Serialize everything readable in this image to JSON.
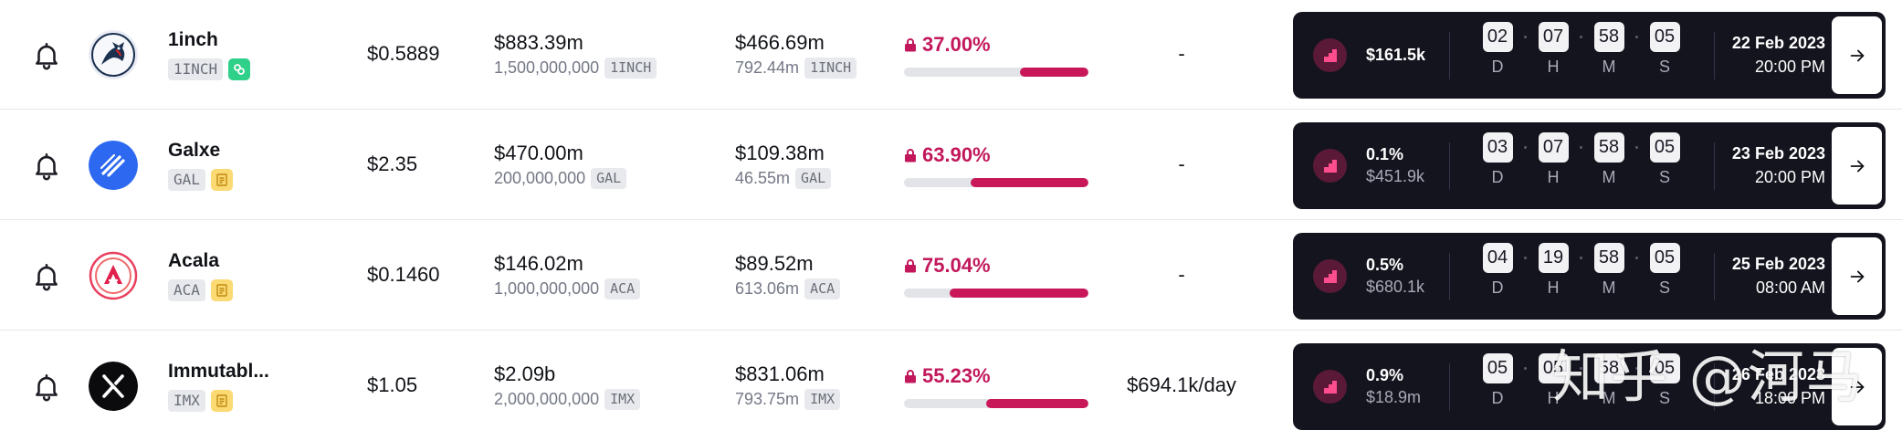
{
  "rows": [
    {
      "name": "1inch",
      "symbol": "1INCH",
      "badge_icon": "link-icon",
      "price": "$0.5889",
      "market_cap": "$883.39m",
      "total_supply": "1,500,000,000",
      "circulating": "$466.69m",
      "circulating_amount": "792.44m",
      "unlocked_pct": "37.00%",
      "unlocked_value": 37.0,
      "daily": "-",
      "next_pct": "",
      "next_value": "$161.5k",
      "countdown": {
        "d": "02",
        "h": "07",
        "m": "58",
        "s": "05"
      },
      "date": "22 Feb 2023",
      "time": "20:00 PM"
    },
    {
      "name": "Galxe",
      "symbol": "GAL",
      "badge_icon": "document-icon",
      "price": "$2.35",
      "market_cap": "$470.00m",
      "total_supply": "200,000,000",
      "circulating": "$109.38m",
      "circulating_amount": "46.55m",
      "unlocked_pct": "63.90%",
      "unlocked_value": 63.9,
      "daily": "-",
      "next_pct": "0.1%",
      "next_value": "$451.9k",
      "countdown": {
        "d": "03",
        "h": "07",
        "m": "58",
        "s": "05"
      },
      "date": "23 Feb 2023",
      "time": "20:00 PM"
    },
    {
      "name": "Acala",
      "symbol": "ACA",
      "badge_icon": "document-icon",
      "price": "$0.1460",
      "market_cap": "$146.02m",
      "total_supply": "1,000,000,000",
      "circulating": "$89.52m",
      "circulating_amount": "613.06m",
      "unlocked_pct": "75.04%",
      "unlocked_value": 75.04,
      "daily": "-",
      "next_pct": "0.5%",
      "next_value": "$680.1k",
      "countdown": {
        "d": "04",
        "h": "19",
        "m": "58",
        "s": "05"
      },
      "date": "25 Feb 2023",
      "time": "08:00 AM"
    },
    {
      "name": "Immutabl...",
      "symbol": "IMX",
      "badge_icon": "document-icon",
      "price": "$1.05",
      "market_cap": "$2.09b",
      "total_supply": "2,000,000,000",
      "circulating": "$831.06m",
      "circulating_amount": "793.75m",
      "unlocked_pct": "55.23%",
      "unlocked_value": 55.23,
      "daily": "$694.1k/day",
      "next_pct": "0.9%",
      "next_value": "$18.9m",
      "countdown": {
        "d": "05",
        "h": "05",
        "m": "58",
        "s": "05"
      },
      "date": "26 Feb 2023",
      "time": "18:00 PM"
    }
  ],
  "countdown_labels": {
    "d": "D",
    "h": "H",
    "m": "M",
    "s": "S"
  },
  "watermark": "知乎 @河马",
  "colors": {
    "accent": "#c8185a",
    "card_bg": "#14141f",
    "badge_green": "#2fd08a",
    "badge_yellow": "#fbd973"
  }
}
